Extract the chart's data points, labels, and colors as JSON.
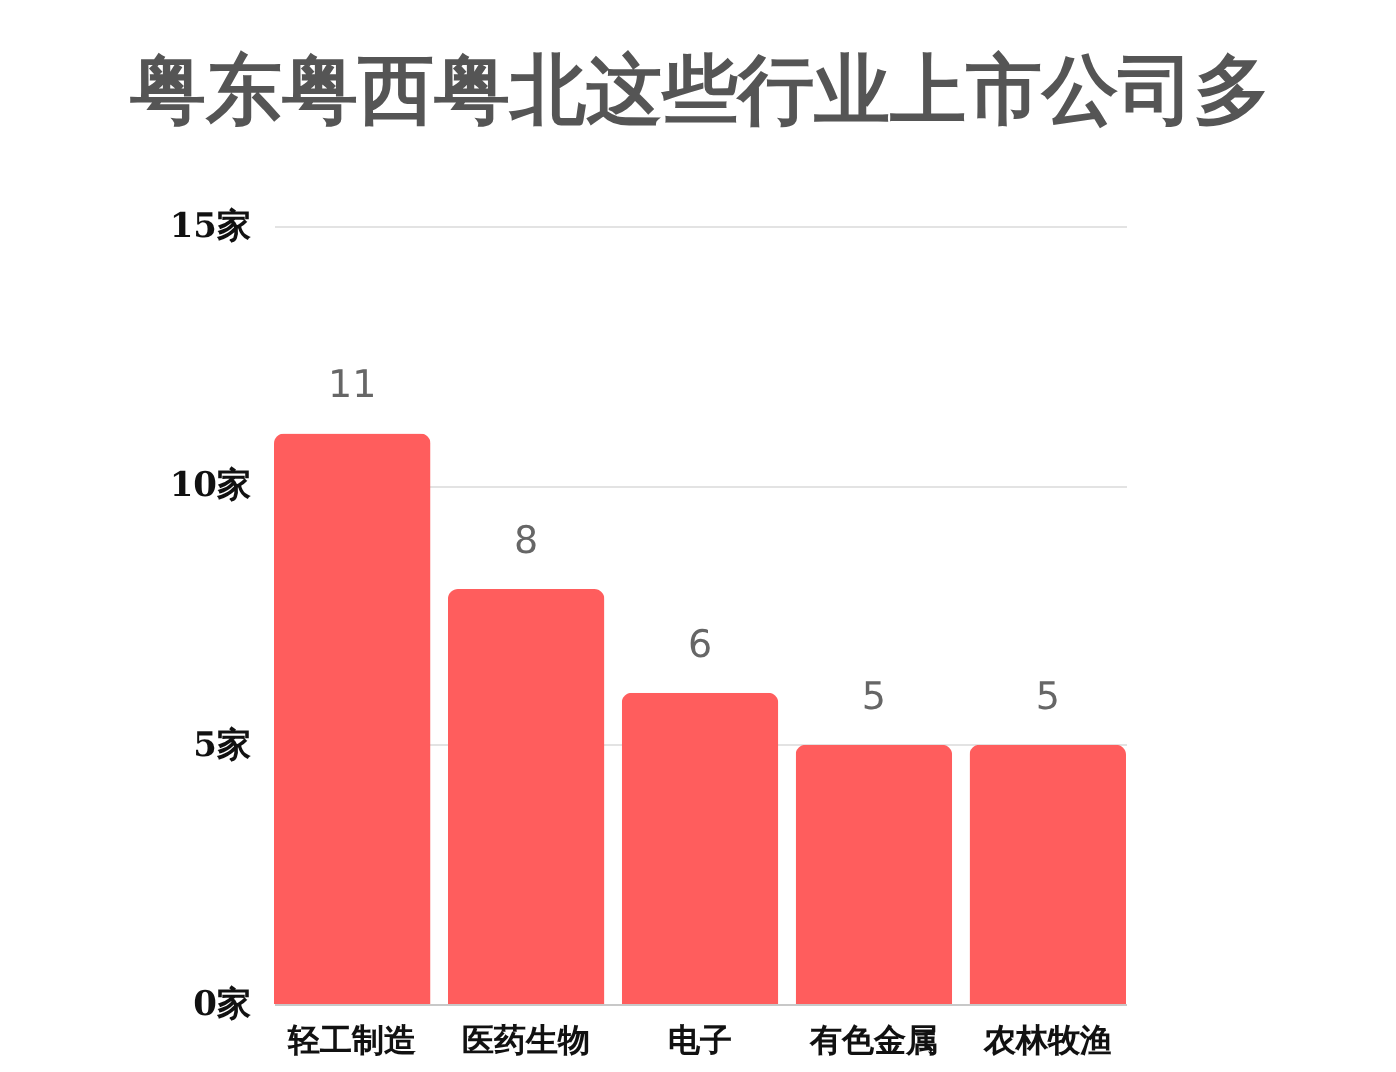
{
  "chart_data": {
    "type": "bar",
    "title": "粤东粤西粤北这些行业上市公司多",
    "categories": [
      "轻工制造",
      "医药生物",
      "电子",
      "有色金属",
      "农林牧渔"
    ],
    "values": [
      11,
      8,
      6,
      5,
      5
    ],
    "color": "#ff5d5d",
    "ylim": [
      0,
      15
    ],
    "yticks": [
      {
        "value": 0,
        "label": "0家"
      },
      {
        "value": 5,
        "label": "5家"
      },
      {
        "value": 10,
        "label": "10家"
      },
      {
        "value": 15,
        "label": "15家"
      }
    ],
    "grid": "y",
    "data_labels": true
  }
}
